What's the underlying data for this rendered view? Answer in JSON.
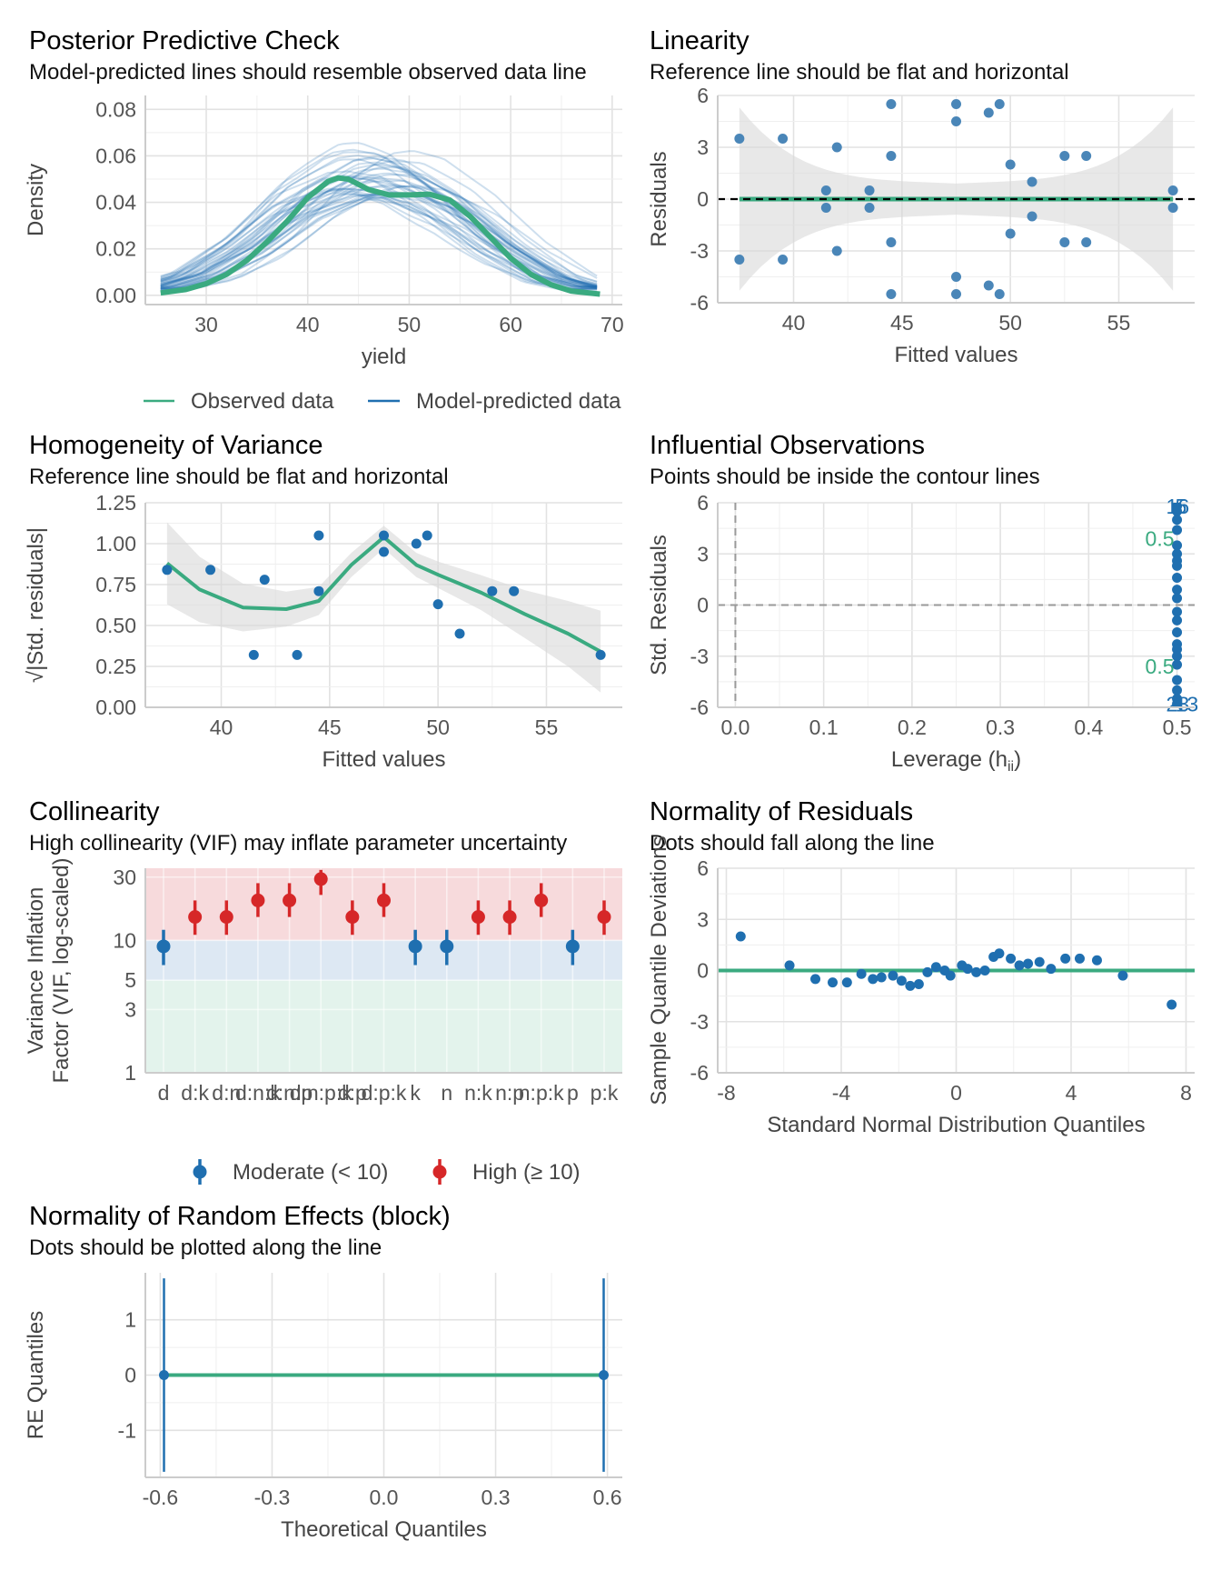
{
  "colors": {
    "observed": "#3aaa80",
    "predicted": "#1f6fb0",
    "point": "#1f6fb0",
    "point_light": "#4a86b8",
    "ref": "#3aaa80",
    "moderate": "#1f6fb0",
    "high": "#d62728",
    "band_low": "#e3f3ec",
    "band_mid": "#dde8f3",
    "band_high": "#f7dadc"
  },
  "chart_data": [
    {
      "id": "ppc",
      "type": "line",
      "title": "Posterior Predictive Check",
      "subtitle": "Model-predicted lines should resemble observed data line",
      "xlabel": "yield",
      "ylabel": "Density",
      "xlim": [
        24,
        71
      ],
      "ylim": [
        -0.004,
        0.086
      ],
      "xticks": [
        30,
        40,
        50,
        60,
        70
      ],
      "yticks": [
        0.0,
        0.02,
        0.04,
        0.06,
        0.08
      ],
      "ytick_labels": [
        "0.00",
        "0.02",
        "0.04",
        "0.06",
        "0.08"
      ],
      "legend": [
        "Observed data",
        "Model-predicted data"
      ],
      "legend_position": "bottom",
      "observed": {
        "x": [
          25.5,
          28,
          30,
          32,
          34,
          36,
          38,
          40,
          42,
          43,
          44,
          46,
          48,
          50,
          52,
          54,
          56,
          58,
          60,
          62,
          64,
          66,
          68.8
        ],
        "y": [
          0.001,
          0.0025,
          0.005,
          0.009,
          0.015,
          0.023,
          0.032,
          0.042,
          0.049,
          0.0505,
          0.05,
          0.0455,
          0.0432,
          0.0432,
          0.0435,
          0.041,
          0.034,
          0.025,
          0.016,
          0.009,
          0.0045,
          0.0018,
          0.0005
        ]
      },
      "predicted_draws": 40,
      "predicted_mean": {
        "x": [
          25.5,
          30,
          35,
          40,
          45,
          47,
          50,
          55,
          60,
          65,
          68.8
        ],
        "y": [
          0.003,
          0.008,
          0.02,
          0.037,
          0.047,
          0.048,
          0.046,
          0.035,
          0.019,
          0.007,
          0.003
        ]
      }
    },
    {
      "id": "linearity",
      "type": "scatter",
      "title": "Linearity",
      "subtitle": "Reference line should be flat and horizontal",
      "xlabel": "Fitted values",
      "ylabel": "Residuals",
      "xlim": [
        36.5,
        58.5
      ],
      "ylim": [
        -6,
        6
      ],
      "xticks": [
        40,
        45,
        50,
        55
      ],
      "yticks": [
        -6,
        -3,
        0,
        3,
        6
      ],
      "x": [
        37.5,
        37.5,
        39.5,
        39.5,
        41.5,
        41.5,
        42,
        42,
        43.5,
        43.5,
        44.5,
        44.5,
        44.5,
        44.5,
        47.5,
        47.5,
        47.5,
        47.5,
        49,
        49,
        49.5,
        49.5,
        50,
        50,
        51,
        51,
        52.5,
        52.5,
        53.5,
        53.5,
        57.5,
        57.5
      ],
      "y": [
        3.5,
        -3.5,
        3.5,
        -3.5,
        0.5,
        -0.5,
        3,
        -3,
        0.5,
        -0.5,
        5.5,
        2.5,
        -2.5,
        -5.5,
        5.5,
        4.5,
        -4.5,
        -5.5,
        5,
        -5,
        5.5,
        -5.5,
        2,
        -2,
        1,
        -1,
        2.5,
        -2.5,
        2.5,
        -2.5,
        0.5,
        -0.5
      ]
    },
    {
      "id": "homogeneity",
      "type": "scatter",
      "title": "Homogeneity of Variance",
      "subtitle": "Reference line should be flat and horizontal",
      "xlabel": "Fitted values",
      "ylabel": "√|Std. residuals|",
      "xlim": [
        36.5,
        58.5
      ],
      "ylim": [
        0,
        1.25
      ],
      "xticks": [
        40,
        45,
        50,
        55
      ],
      "yticks": [
        0,
        0.25,
        0.5,
        0.75,
        1.0,
        1.25
      ],
      "ytick_labels": [
        "0.00",
        "0.25",
        "0.50",
        "0.75",
        "1.00",
        "1.25"
      ],
      "x": [
        37.5,
        39.5,
        41.5,
        42,
        43.5,
        44.5,
        44.5,
        47.5,
        47.5,
        49,
        49.5,
        50,
        51,
        52.5,
        53.5,
        57.5
      ],
      "y": [
        0.84,
        0.84,
        0.32,
        0.78,
        0.32,
        1.05,
        0.71,
        1.05,
        0.95,
        1.0,
        1.05,
        0.63,
        0.45,
        0.71,
        0.71,
        0.32
      ],
      "smooth": {
        "x": [
          37.5,
          39,
          41,
          43,
          44.5,
          46,
          47.5,
          49,
          50,
          52,
          54,
          56,
          57.5
        ],
        "y": [
          0.88,
          0.72,
          0.61,
          0.6,
          0.65,
          0.87,
          1.04,
          0.87,
          0.81,
          0.7,
          0.57,
          0.45,
          0.34
        ]
      }
    },
    {
      "id": "influential",
      "type": "scatter",
      "title": "Influential Observations",
      "subtitle": "Points should be inside the contour lines",
      "xlabel": "Leverage (h",
      "xlabel_sub": "ii",
      "xlabel_end": ")",
      "ylabel": "Std. Residuals",
      "xlim": [
        -0.02,
        0.52
      ],
      "ylim": [
        -6,
        6
      ],
      "xticks": [
        0.0,
        0.1,
        0.2,
        0.3,
        0.4,
        0.5
      ],
      "xtick_labels": [
        "0.0",
        "0.1",
        "0.2",
        "0.3",
        "0.4",
        "0.5"
      ],
      "yticks": [
        -6,
        -3,
        0,
        3,
        6
      ],
      "x": [
        0.5,
        0.5,
        0.5,
        0.5,
        0.5,
        0.5,
        0.5,
        0.5,
        0.5,
        0.5,
        0.5,
        0.5,
        0.5,
        0.5,
        0.5,
        0.5,
        0.5,
        0.5,
        0.5,
        0.5,
        0.5,
        0.5
      ],
      "y": [
        5.8,
        5.5,
        5.0,
        4.4,
        3.5,
        3.0,
        2.6,
        2.3,
        1.6,
        0.9,
        0.4,
        -0.4,
        -0.9,
        -1.6,
        -2.3,
        -2.6,
        -3.0,
        -3.5,
        -4.4,
        -5.0,
        -5.5,
        -5.8
      ],
      "labels": [
        "16",
        "5",
        "23",
        "13"
      ],
      "contour_labels": [
        "0.5",
        "0.5"
      ]
    },
    {
      "id": "collinearity",
      "type": "scatter",
      "title": "Collinearity",
      "subtitle": "High collinearity (VIF) may inflate parameter uncertainty",
      "xlabel": "",
      "ylabel": "Variance Inflation",
      "ylabel2": "Factor (VIF, log-scaled)",
      "log_y": true,
      "ylim": [
        1,
        35
      ],
      "yticks": [
        1,
        3,
        5,
        10,
        30
      ],
      "categories": [
        "d",
        "d:k",
        "d:n",
        "d:n:k",
        "d:n:p",
        "d:n:p:k",
        "d:p",
        "d:p:k",
        "k",
        "n",
        "n:k",
        "n:p",
        "n:p:k",
        "p",
        "p:k"
      ],
      "category_labels": [
        "d",
        "d:k",
        "d:n",
        "d:n:k",
        "d:n:p",
        "d:n:p:k",
        "d:p",
        "d:p:k",
        "k",
        "n",
        "n:k",
        "n:p",
        "n:p:k",
        "p",
        "p:k"
      ],
      "values": [
        9.0,
        15.0,
        15.0,
        20.0,
        20.0,
        29.0,
        15.0,
        20.0,
        9.0,
        9.0,
        15.0,
        15.0,
        20.0,
        9.0,
        15.0
      ],
      "lower": [
        6.5,
        11.0,
        11.0,
        15.0,
        15.0,
        22.0,
        11.0,
        15.0,
        6.5,
        6.5,
        11.0,
        11.0,
        15.0,
        6.5,
        11.0
      ],
      "upper": [
        12.0,
        20.0,
        20.0,
        27.0,
        27.0,
        34.0,
        20.0,
        27.0,
        12.0,
        12.0,
        20.0,
        20.0,
        27.0,
        12.0,
        20.0
      ],
      "group": [
        "Moderate",
        "High",
        "High",
        "High",
        "High",
        "High",
        "High",
        "High",
        "Moderate",
        "Moderate",
        "High",
        "High",
        "High",
        "Moderate",
        "High"
      ],
      "legend": [
        "Moderate (< 10)",
        "High (≥ 10)"
      ],
      "legend_position": "bottom"
    },
    {
      "id": "qq",
      "type": "scatter",
      "title": "Normality of Residuals",
      "subtitle": "Dots should fall along the line",
      "xlabel": "Standard Normal Distribution Quantiles",
      "ylabel": "Sample Quantile Deviations",
      "xlim": [
        -8.3,
        8.3
      ],
      "ylim": [
        -6,
        6
      ],
      "xticks": [
        -8,
        -4,
        0,
        4,
        8
      ],
      "yticks": [
        -6,
        -3,
        0,
        3,
        6
      ],
      "x": [
        -7.5,
        -5.8,
        -4.9,
        -4.3,
        -3.8,
        -3.3,
        -2.9,
        -2.6,
        -2.2,
        -1.9,
        -1.6,
        -1.3,
        -1.0,
        -0.7,
        -0.4,
        -0.2,
        0.2,
        0.4,
        0.7,
        1.0,
        1.3,
        1.5,
        1.9,
        2.2,
        2.5,
        2.9,
        3.3,
        3.8,
        4.3,
        4.9,
        5.8,
        7.5
      ],
      "y": [
        2.0,
        0.3,
        -0.5,
        -0.7,
        -0.7,
        -0.2,
        -0.5,
        -0.4,
        -0.3,
        -0.6,
        -0.9,
        -0.8,
        -0.1,
        0.2,
        0.0,
        -0.3,
        0.3,
        0.1,
        -0.1,
        0.0,
        0.8,
        1.0,
        0.7,
        0.3,
        0.4,
        0.5,
        0.1,
        0.7,
        0.7,
        0.6,
        -0.3,
        -2.0
      ]
    },
    {
      "id": "re",
      "type": "scatter",
      "title": "Normality of Random Effects (block)",
      "subtitle": "Dots should be plotted along the line",
      "xlabel": "Theoretical Quantiles",
      "ylabel": "RE Quantiles",
      "xlim": [
        -0.64,
        0.64
      ],
      "ylim": [
        -1.85,
        1.85
      ],
      "xticks": [
        -0.6,
        -0.3,
        0.0,
        0.3,
        0.6
      ],
      "xtick_labels": [
        "-0.6",
        "-0.3",
        "0.0",
        "0.3",
        "0.6"
      ],
      "yticks": [
        -1,
        0,
        1
      ],
      "x": [
        -0.59,
        0.59
      ],
      "y": [
        0,
        0
      ],
      "err_low": [
        -1.75,
        -1.75
      ],
      "err_high": [
        1.75,
        1.75
      ]
    }
  ]
}
